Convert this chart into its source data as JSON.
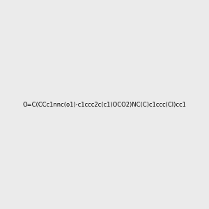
{
  "smiles": "O=C(CCc1nnc(o1)-c1ccc2c(c1)OCO2)NC(C)c1ccc(Cl)cc1",
  "bg_color": "#ebebeb",
  "img_size": [
    300,
    300
  ],
  "title": "",
  "atom_colors": {
    "N": "#0000ff",
    "O": "#ff0000",
    "Cl": "#00cc00",
    "C": "#000000",
    "H": "#888888"
  }
}
